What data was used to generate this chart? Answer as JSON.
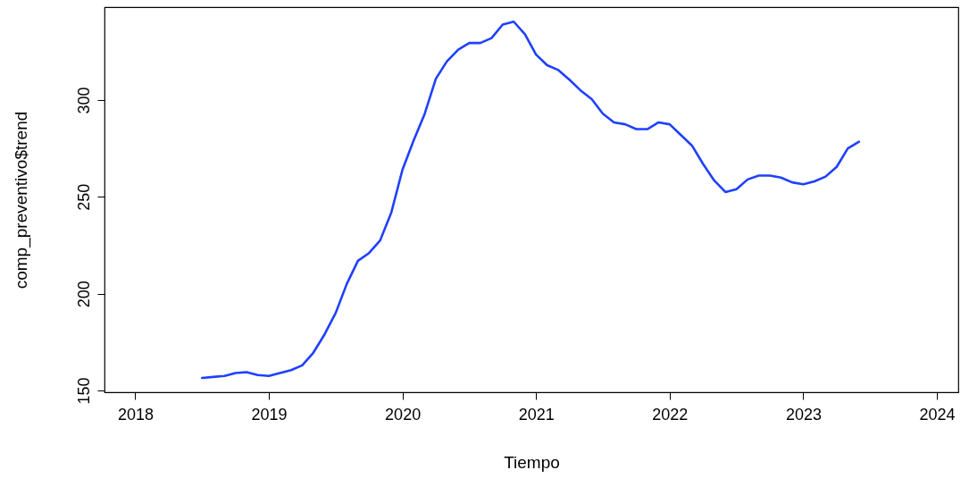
{
  "chart_data": {
    "type": "line",
    "xlabel": "Tiempo",
    "ylabel": "comp_preventivo$trend",
    "x": [
      2018.5,
      2018.583,
      2018.667,
      2018.75,
      2018.833,
      2018.917,
      2019,
      2019.083,
      2019.167,
      2019.25,
      2019.333,
      2019.417,
      2019.5,
      2019.583,
      2019.667,
      2019.75,
      2019.833,
      2019.917,
      2020,
      2020.083,
      2020.167,
      2020.25,
      2020.333,
      2020.417,
      2020.5,
      2020.583,
      2020.667,
      2020.75,
      2020.833,
      2020.917,
      2021,
      2021.083,
      2021.167,
      2021.25,
      2021.333,
      2021.417,
      2021.5,
      2021.583,
      2021.667,
      2021.75,
      2021.833,
      2021.917,
      2022,
      2022.083,
      2022.167,
      2022.25,
      2022.333,
      2022.417,
      2022.5,
      2022.583,
      2022.667,
      2022.75,
      2022.833,
      2022.917,
      2023,
      2023.083,
      2023.167,
      2023.25,
      2023.333,
      2023.417
    ],
    "series": [
      {
        "color": "#1f40ff",
        "values": [
          156.5,
          157,
          157.5,
          159,
          159.5,
          158,
          157.5,
          159,
          160.5,
          163,
          169.5,
          179,
          190,
          205,
          217,
          221,
          227.5,
          242,
          264,
          279,
          293,
          311,
          320,
          326,
          329.5,
          329.5,
          332,
          339,
          340.5,
          334,
          323.5,
          318,
          315.5,
          310.5,
          305,
          300.5,
          293,
          288.5,
          287.5,
          285,
          285,
          288.5,
          287.5,
          282,
          276.5,
          267,
          258.5,
          252.5,
          254,
          259,
          261,
          261,
          260,
          257.5,
          256.5,
          258,
          260.5,
          265.5,
          275,
          278.5
        ]
      }
    ],
    "xlim": [
      2017.77,
      2024.16
    ],
    "xticks": [
      2018,
      2019,
      2020,
      2021,
      2022,
      2023,
      2024
    ],
    "ylim": [
      149.1,
      348
    ],
    "yticks": [
      150,
      200,
      250,
      300
    ],
    "grid": false,
    "marker": "none",
    "line_style": "solid"
  }
}
